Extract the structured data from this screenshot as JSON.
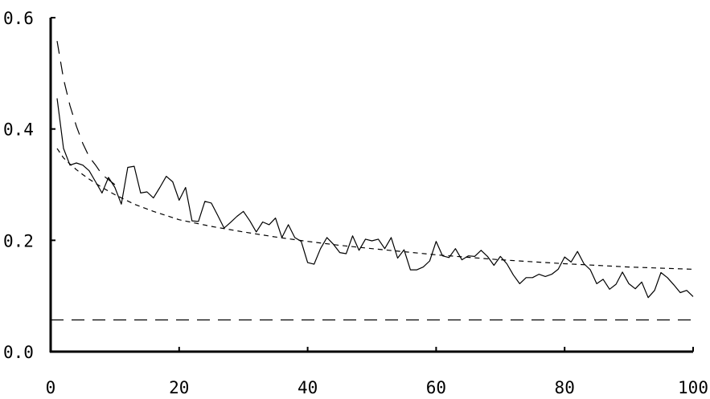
{
  "chart_data": {
    "type": "line",
    "title": "",
    "xlabel": "",
    "ylabel": "",
    "xlim": [
      0,
      100
    ],
    "ylim": [
      0.0,
      0.6
    ],
    "x_ticks": [
      0,
      20,
      40,
      60,
      80,
      100
    ],
    "x_tick_labels": [
      "0",
      "20",
      "40",
      "60",
      "80",
      "100"
    ],
    "y_ticks": [
      0.0,
      0.2,
      0.4,
      0.6
    ],
    "y_tick_labels": [
      "0.0",
      "0.2",
      "0.4",
      "0.6"
    ],
    "grid": false,
    "legend": "none",
    "series": [
      {
        "style": "solid",
        "color": "#000000",
        "x": [
          1,
          2,
          3,
          4,
          5,
          6,
          7,
          8,
          9,
          10,
          11,
          12,
          13,
          14,
          15,
          16,
          17,
          18,
          19,
          20,
          21,
          22,
          23,
          24,
          25,
          26,
          27,
          28,
          29,
          30,
          31,
          32,
          33,
          34,
          35,
          36,
          37,
          38,
          39,
          40,
          41,
          42,
          43,
          44,
          45,
          46,
          47,
          48,
          49,
          50,
          51,
          52,
          53,
          54,
          55,
          56,
          57,
          58,
          59,
          60,
          61,
          62,
          63,
          64,
          65,
          66,
          67,
          68,
          69,
          70,
          71,
          72,
          73,
          74,
          75,
          76,
          77,
          78,
          79,
          80,
          81,
          82,
          83,
          84,
          85,
          86,
          87,
          88,
          89,
          90,
          91,
          92,
          93,
          94,
          95,
          96,
          97,
          98,
          99,
          100
        ],
        "y": [
          0.455,
          0.365,
          0.335,
          0.339,
          0.335,
          0.325,
          0.305,
          0.285,
          0.313,
          0.295,
          0.265,
          0.331,
          0.333,
          0.285,
          0.287,
          0.276,
          0.295,
          0.315,
          0.305,
          0.272,
          0.295,
          0.235,
          0.234,
          0.27,
          0.267,
          0.245,
          0.222,
          0.232,
          0.243,
          0.252,
          0.235,
          0.215,
          0.233,
          0.228,
          0.24,
          0.205,
          0.228,
          0.205,
          0.198,
          0.16,
          0.157,
          0.185,
          0.205,
          0.193,
          0.178,
          0.176,
          0.208,
          0.182,
          0.202,
          0.199,
          0.202,
          0.185,
          0.205,
          0.168,
          0.183,
          0.147,
          0.147,
          0.152,
          0.163,
          0.198,
          0.172,
          0.169,
          0.185,
          0.165,
          0.172,
          0.171,
          0.182,
          0.171,
          0.155,
          0.171,
          0.158,
          0.138,
          0.122,
          0.133,
          0.133,
          0.139,
          0.135,
          0.139,
          0.148,
          0.17,
          0.161,
          0.18,
          0.158,
          0.147,
          0.122,
          0.13,
          0.112,
          0.121,
          0.143,
          0.122,
          0.113,
          0.125,
          0.097,
          0.11,
          0.142,
          0.133,
          0.12,
          0.106,
          0.11,
          0.099
        ]
      },
      {
        "style": "short-dash",
        "color": "#000000",
        "x": [
          1,
          2,
          3,
          4,
          5,
          6,
          8,
          10,
          13,
          16,
          20,
          25,
          30,
          35,
          40,
          45,
          50,
          60,
          70,
          80,
          90,
          100
        ],
        "y": [
          0.365,
          0.348,
          0.337,
          0.327,
          0.318,
          0.31,
          0.295,
          0.282,
          0.265,
          0.252,
          0.237,
          0.225,
          0.215,
          0.206,
          0.198,
          0.191,
          0.185,
          0.174,
          0.165,
          0.158,
          0.152,
          0.148
        ]
      },
      {
        "style": "long-dash",
        "color": "#000000",
        "x": [
          1,
          2,
          3,
          4,
          5,
          6,
          7,
          8,
          10
        ],
        "y": [
          0.558,
          0.49,
          0.442,
          0.405,
          0.374,
          0.35,
          0.335,
          0.318,
          0.3
        ]
      },
      {
        "style": "long-dash",
        "color": "#000000",
        "x": [
          0,
          100
        ],
        "y": [
          0.057,
          0.057
        ]
      }
    ]
  }
}
